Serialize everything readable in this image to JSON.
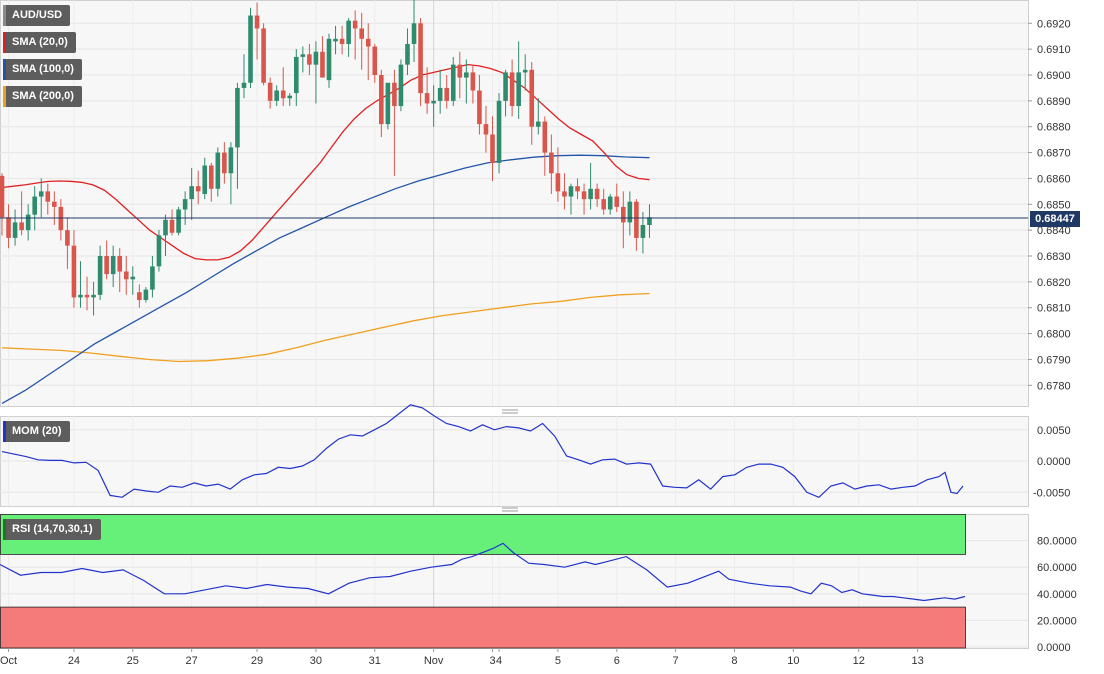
{
  "legends": {
    "pair": {
      "label": "AUD/USD",
      "color": "#7f7f7f"
    },
    "sma20": {
      "label": "SMA (20,0)",
      "color": "#e02020"
    },
    "sma100": {
      "label": "SMA (100,0)",
      "color": "#2255aa"
    },
    "sma200": {
      "label": "SMA (200,0)",
      "color": "#f0a020"
    },
    "mom": {
      "label": "MOM (20)",
      "color": "#2233cc"
    },
    "rsi": {
      "label": "RSI (14,70,30,1)",
      "color": "#1a7a1a"
    }
  },
  "current_price": "0.68447",
  "colors": {
    "up": "#2e8b6e",
    "down": "#d9564c",
    "sma20": "#e02020",
    "sma100": "#2255aa",
    "sma200": "#f0a020",
    "indicator": "#2233cc",
    "overbought": "#66f07a",
    "oversold": "#f57a7a"
  },
  "chart_data": {
    "type": "line",
    "price_axis": {
      "range": [
        0.6772,
        0.6929
      ],
      "ticks": [
        "0.6920",
        "0.6910",
        "0.6900",
        "0.6890",
        "0.6880",
        "0.6870",
        "0.6860",
        "0.6850",
        "0.6840",
        "0.6830",
        "0.6820",
        "0.6810",
        "0.6800",
        "0.6790",
        "0.6780"
      ]
    },
    "mom_axis": {
      "range": [
        -0.0072,
        0.0072
      ],
      "ticks": [
        "0.0050",
        "0.0000",
        "-0.0050"
      ]
    },
    "rsi_axis": {
      "range": [
        0,
        100
      ],
      "ticks": [
        "80.0000",
        "60.0000",
        "40.0000",
        "20.0000",
        "0.0000"
      ],
      "overbought": 70,
      "oversold": 30
    },
    "x_labels": [
      {
        "label": "Oct",
        "i": 1
      },
      {
        "label": "24",
        "i": 11
      },
      {
        "label": "25",
        "i": 20
      },
      {
        "label": "27",
        "i": 29
      },
      {
        "label": "29",
        "i": 39
      },
      {
        "label": "30",
        "i": 48
      },
      {
        "label": "31",
        "i": 57
      },
      {
        "label": "Nov",
        "i": 66
      },
      {
        "label": "3",
        "i": 75
      },
      {
        "label": "4",
        "i": 76
      },
      {
        "label": "5",
        "i": 85
      },
      {
        "label": "6",
        "i": 94
      },
      {
        "label": "7",
        "i": 103
      },
      {
        "label": "8",
        "i": 112
      },
      {
        "label": "10",
        "i": 121
      },
      {
        "label": "12",
        "i": 131
      },
      {
        "label": "13",
        "i": 140
      }
    ],
    "candles_ohlc": [
      [
        0.6861,
        0.6862,
        0.6838,
        0.6845
      ],
      [
        0.6845,
        0.685,
        0.6833,
        0.6837
      ],
      [
        0.6837,
        0.6848,
        0.6834,
        0.6843
      ],
      [
        0.6843,
        0.6855,
        0.6838,
        0.684
      ],
      [
        0.684,
        0.685,
        0.6836,
        0.6846
      ],
      [
        0.6846,
        0.6857,
        0.684,
        0.6853
      ],
      [
        0.6853,
        0.686,
        0.6845,
        0.6855
      ],
      [
        0.6855,
        0.6858,
        0.6846,
        0.6851
      ],
      [
        0.6851,
        0.6855,
        0.6842,
        0.6849
      ],
      [
        0.6849,
        0.6852,
        0.6836,
        0.684
      ],
      [
        0.684,
        0.6845,
        0.6825,
        0.6834
      ],
      [
        0.6834,
        0.684,
        0.681,
        0.6814
      ],
      [
        0.6814,
        0.6828,
        0.681,
        0.6815
      ],
      [
        0.6815,
        0.6822,
        0.6809,
        0.6814
      ],
      [
        0.6814,
        0.682,
        0.6807,
        0.6815
      ],
      [
        0.6815,
        0.6834,
        0.6813,
        0.683
      ],
      [
        0.683,
        0.6836,
        0.6821,
        0.6823
      ],
      [
        0.6823,
        0.6834,
        0.6818,
        0.683
      ],
      [
        0.683,
        0.6833,
        0.6816,
        0.6824
      ],
      [
        0.6824,
        0.683,
        0.6815,
        0.6821
      ],
      [
        0.6821,
        0.6826,
        0.6815,
        0.6822
      ],
      [
        0.6816,
        0.6819,
        0.681,
        0.6813
      ],
      [
        0.6813,
        0.6818,
        0.6812,
        0.6817
      ],
      [
        0.6817,
        0.683,
        0.6814,
        0.6826
      ],
      [
        0.6826,
        0.684,
        0.6824,
        0.6838
      ],
      [
        0.6838,
        0.6846,
        0.683,
        0.6844
      ],
      [
        0.6844,
        0.6848,
        0.6838,
        0.6839
      ],
      [
        0.6839,
        0.6849,
        0.6838,
        0.6848
      ],
      [
        0.6848,
        0.6855,
        0.6842,
        0.6852
      ],
      [
        0.6852,
        0.6864,
        0.6844,
        0.6857
      ],
      [
        0.6857,
        0.6863,
        0.685,
        0.6855
      ],
      [
        0.6854,
        0.6868,
        0.6852,
        0.6865
      ],
      [
        0.6865,
        0.6866,
        0.6851,
        0.6856
      ],
      [
        0.6856,
        0.6872,
        0.6853,
        0.687
      ],
      [
        0.687,
        0.6874,
        0.6858,
        0.6862
      ],
      [
        0.6862,
        0.6874,
        0.685,
        0.6872
      ],
      [
        0.6872,
        0.6897,
        0.6856,
        0.6895
      ],
      [
        0.6895,
        0.6908,
        0.6891,
        0.6897
      ],
      [
        0.6897,
        0.6926,
        0.6895,
        0.6923
      ],
      [
        0.6923,
        0.6928,
        0.6906,
        0.6918
      ],
      [
        0.6918,
        0.692,
        0.6896,
        0.6897
      ],
      [
        0.6897,
        0.6899,
        0.6887,
        0.689
      ],
      [
        0.689,
        0.6896,
        0.6888,
        0.6894
      ],
      [
        0.6894,
        0.6903,
        0.6888,
        0.6891
      ],
      [
        0.6891,
        0.6893,
        0.6888,
        0.6892
      ],
      [
        0.6893,
        0.691,
        0.6888,
        0.6907
      ],
      [
        0.6907,
        0.6911,
        0.6901,
        0.6908
      ],
      [
        0.6908,
        0.6912,
        0.69,
        0.6904
      ],
      [
        0.6904,
        0.6913,
        0.6889,
        0.6909
      ],
      [
        0.6909,
        0.6915,
        0.6902,
        0.6899
      ],
      [
        0.6898,
        0.6916,
        0.6895,
        0.6914
      ],
      [
        0.6913,
        0.6919,
        0.6908,
        0.6914
      ],
      [
        0.6914,
        0.6919,
        0.6908,
        0.6912
      ],
      [
        0.6912,
        0.6922,
        0.6907,
        0.6921
      ],
      [
        0.6921,
        0.6925,
        0.6906,
        0.6918
      ],
      [
        0.6918,
        0.6924,
        0.6902,
        0.6914
      ],
      [
        0.6914,
        0.692,
        0.6898,
        0.6911
      ],
      [
        0.6911,
        0.6912,
        0.6897,
        0.69
      ],
      [
        0.69,
        0.6902,
        0.6876,
        0.6881
      ],
      [
        0.6881,
        0.6895,
        0.6879,
        0.6897
      ],
      [
        0.6897,
        0.6902,
        0.6861,
        0.6888
      ],
      [
        0.6888,
        0.6906,
        0.6886,
        0.6904
      ],
      [
        0.6904,
        0.6918,
        0.69,
        0.6912
      ],
      [
        0.6912,
        0.6929,
        0.6905,
        0.692
      ],
      [
        0.692,
        0.6922,
        0.6888,
        0.6893
      ],
      [
        0.6893,
        0.6903,
        0.6885,
        0.6889
      ],
      [
        0.6889,
        0.6896,
        0.688,
        0.689
      ],
      [
        0.689,
        0.6902,
        0.6885,
        0.6895
      ],
      [
        0.6895,
        0.69,
        0.6887,
        0.689
      ],
      [
        0.689,
        0.6907,
        0.6888,
        0.6904
      ],
      [
        0.6904,
        0.6909,
        0.6891,
        0.6899
      ],
      [
        0.6899,
        0.6906,
        0.6889,
        0.6901
      ],
      [
        0.6901,
        0.6904,
        0.6889,
        0.6894
      ],
      [
        0.6894,
        0.69,
        0.6877,
        0.6881
      ],
      [
        0.6881,
        0.6888,
        0.687,
        0.6877
      ],
      [
        0.6877,
        0.6884,
        0.6859,
        0.6866
      ],
      [
        0.6866,
        0.6893,
        0.6862,
        0.689
      ],
      [
        0.689,
        0.6902,
        0.6884,
        0.6901
      ],
      [
        0.6901,
        0.6906,
        0.6884,
        0.6888
      ],
      [
        0.6888,
        0.6913,
        0.6883,
        0.6901
      ],
      [
        0.6901,
        0.6908,
        0.6894,
        0.6902
      ],
      [
        0.6902,
        0.6905,
        0.6873,
        0.688
      ],
      [
        0.688,
        0.6891,
        0.6877,
        0.6882
      ],
      [
        0.6882,
        0.6884,
        0.6861,
        0.687
      ],
      [
        0.687,
        0.6877,
        0.6854,
        0.6862
      ],
      [
        0.6862,
        0.6872,
        0.6851,
        0.6855
      ],
      [
        0.6855,
        0.6862,
        0.6848,
        0.6853
      ],
      [
        0.6853,
        0.6858,
        0.6846,
        0.6857
      ],
      [
        0.6857,
        0.686,
        0.6852,
        0.6855
      ],
      [
        0.6855,
        0.6858,
        0.6846,
        0.6852
      ],
      [
        0.6852,
        0.6866,
        0.6848,
        0.6856
      ],
      [
        0.6856,
        0.6858,
        0.6849,
        0.6852
      ],
      [
        0.6852,
        0.6856,
        0.6846,
        0.6848
      ],
      [
        0.6848,
        0.6854,
        0.6846,
        0.6853
      ],
      [
        0.6853,
        0.6858,
        0.6847,
        0.6849
      ],
      [
        0.6849,
        0.6855,
        0.6833,
        0.6843
      ],
      [
        0.6843,
        0.6855,
        0.6838,
        0.6851
      ],
      [
        0.6851,
        0.6852,
        0.6832,
        0.6837
      ],
      [
        0.6837,
        0.6847,
        0.6831,
        0.6842
      ],
      [
        0.6842,
        0.685,
        0.6837,
        0.6845
      ]
    ],
    "sma20": [
      0.68565,
      0.6857,
      0.68575,
      0.68582,
      0.68588,
      0.6859,
      0.68589,
      0.68585,
      0.68575,
      0.68555,
      0.6852,
      0.6848,
      0.6844,
      0.684,
      0.6837,
      0.6834,
      0.6831,
      0.6829,
      0.68285,
      0.68285,
      0.68295,
      0.6832,
      0.6836,
      0.6841,
      0.6846,
      0.6851,
      0.6856,
      0.6861,
      0.6866,
      0.6872,
      0.6878,
      0.6883,
      0.6887,
      0.689,
      0.68925,
      0.6895,
      0.6898,
      0.69,
      0.6901,
      0.6902,
      0.6903,
      0.6904,
      0.69035,
      0.69025,
      0.6901,
      0.6898,
      0.6895,
      0.6891,
      0.6887,
      0.6883,
      0.68795,
      0.6877,
      0.68745,
      0.687,
      0.6865,
      0.68615,
      0.686,
      0.68595
    ],
    "sma100": [
      0.6773,
      0.6778,
      0.6784,
      0.679,
      0.6796,
      0.6801,
      0.6806,
      0.6811,
      0.6816,
      0.68215,
      0.6827,
      0.6832,
      0.6837,
      0.6841,
      0.6845,
      0.6849,
      0.68525,
      0.6856,
      0.6859,
      0.68615,
      0.6864,
      0.6866,
      0.68672,
      0.68682,
      0.68688,
      0.6869,
      0.68688,
      0.68683,
      0.6868
    ],
    "sma200": [
      0.67945,
      0.6794,
      0.67935,
      0.67925,
      0.67912,
      0.679,
      0.67892,
      0.67895,
      0.67905,
      0.6792,
      0.67945,
      0.67975,
      0.68,
      0.68025,
      0.6805,
      0.6807,
      0.68085,
      0.681,
      0.68115,
      0.68125,
      0.6814,
      0.6815,
      0.68155
    ],
    "mom": [
      0.0015,
      0.0007,
      0.0002,
      0.0001,
      0.0001,
      -0.0003,
      -0.0002,
      -0.0015,
      -0.0055,
      -0.0058,
      -0.0045,
      -0.0048,
      -0.005,
      -0.004,
      -0.0042,
      -0.0035,
      -0.004,
      -0.0037,
      -0.0045,
      -0.003,
      -0.0022,
      -0.002,
      -0.001,
      -0.0012,
      -0.0008,
      0.0002,
      0.002,
      0.0035,
      0.0042,
      0.004,
      0.005,
      0.006,
      0.0075,
      0.009,
      0.0085,
      0.0072,
      0.006,
      0.0055,
      0.0048,
      0.0058,
      0.005,
      0.0055,
      0.0053,
      0.0048,
      0.006,
      0.004,
      0.0008,
      0.0002,
      -0.0005,
      0.0002,
      0.0003,
      -0.0005,
      -0.0003,
      -0.0005,
      -0.004,
      -0.0042,
      -0.0043,
      -0.003,
      -0.0045,
      -0.0025,
      -0.0022,
      -0.001,
      -0.0005,
      -0.0005,
      -0.001,
      -0.0025,
      -0.005,
      -0.0058,
      -0.004,
      -0.0035,
      -0.0045,
      -0.004,
      -0.0038,
      -0.0045,
      -0.0042,
      -0.004,
      -0.003,
      -0.0025,
      -0.0018,
      -0.005,
      -0.0052,
      -0.004
    ],
    "mom_x": [
      0,
      4,
      6,
      8,
      10,
      12,
      14,
      16,
      18,
      20,
      22,
      24,
      26,
      28,
      30,
      32,
      34,
      36,
      38,
      40,
      42,
      44,
      46,
      48,
      50,
      52,
      54,
      56,
      58,
      60,
      62,
      64,
      66,
      68,
      70,
      72,
      74,
      76,
      78,
      80,
      82,
      84,
      86,
      88,
      90,
      92,
      94,
      96,
      98,
      100,
      102,
      104,
      106,
      108,
      110,
      112,
      114,
      116,
      118,
      120,
      122,
      124,
      126,
      128,
      130,
      132,
      134,
      136,
      138,
      140,
      142,
      144,
      146,
      148,
      150,
      152,
      154,
      156,
      157,
      158,
      159,
      160
    ],
    "rsi": [
      62,
      54,
      56,
      56,
      59,
      56,
      58,
      50,
      40,
      40,
      43,
      46,
      44,
      47,
      45,
      44,
      40,
      48,
      52,
      53,
      57,
      60,
      62,
      66,
      68,
      71,
      74,
      78,
      71,
      63,
      62,
      60,
      64,
      62,
      64,
      68,
      58,
      45,
      48,
      54,
      57,
      51,
      48,
      46,
      45,
      42,
      40,
      48,
      46,
      41,
      43,
      40,
      39,
      38,
      38,
      37,
      36,
      35,
      36,
      37,
      36,
      38
    ],
    "rsi_x": [
      0,
      4,
      8,
      12,
      16,
      20,
      24,
      28,
      32,
      36,
      40,
      44,
      48,
      52,
      56,
      60,
      64,
      68,
      72,
      76,
      80,
      84,
      88,
      90,
      92,
      94,
      96,
      98,
      100,
      103,
      106,
      110,
      114,
      116,
      118,
      122,
      126,
      130,
      134,
      138,
      140,
      142,
      146,
      150,
      154,
      156,
      158,
      160,
      162,
      164,
      166,
      168,
      170,
      172,
      174,
      176,
      178,
      180,
      182,
      184,
      186,
      188
    ]
  }
}
